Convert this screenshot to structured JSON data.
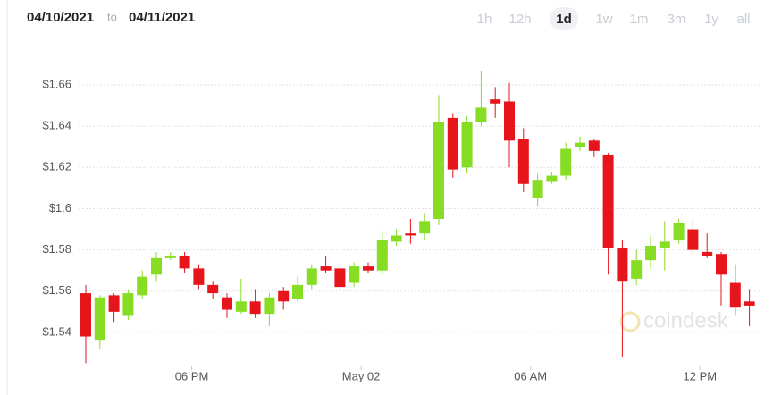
{
  "header": {
    "date_from": "04/10/2021",
    "to": "to",
    "date_to": "04/11/2021",
    "ranges": [
      "1h",
      "12h",
      "1d",
      "1w",
      "1m",
      "3m",
      "1y",
      "all"
    ],
    "selected_range": 2
  },
  "chart_data": {
    "type": "candlestick",
    "watermark": "coindesk",
    "categories": [
      null,
      null,
      null,
      null,
      null,
      null,
      null,
      null,
      null,
      null,
      null,
      null,
      null,
      null,
      null,
      null,
      null,
      null,
      null,
      null,
      null,
      null,
      null,
      null,
      null,
      null,
      null,
      null,
      null,
      null,
      null,
      null,
      null,
      null,
      null,
      null,
      null,
      null,
      null,
      null,
      null,
      null,
      null,
      null,
      null,
      null,
      null,
      null
    ],
    "open": [
      1.559,
      1.536,
      1.558,
      1.548,
      1.558,
      1.568,
      1.576,
      1.577,
      1.571,
      1.563,
      1.557,
      1.55,
      1.555,
      1.549,
      1.56,
      1.556,
      1.563,
      1.572,
      1.571,
      1.564,
      1.572,
      1.57,
      1.584,
      1.588,
      1.588,
      1.595,
      1.644,
      1.62,
      1.642,
      1.653,
      1.652,
      1.634,
      1.605,
      1.613,
      1.616,
      1.63,
      1.633,
      1.626,
      1.581,
      1.566,
      1.575,
      1.581,
      1.585,
      1.59,
      1.579,
      1.578,
      1.564,
      1.555
    ],
    "high": [
      1.563,
      1.558,
      1.559,
      1.561,
      1.57,
      1.579,
      1.579,
      1.579,
      1.573,
      1.565,
      1.559,
      1.566,
      1.561,
      1.559,
      1.562,
      1.567,
      1.573,
      1.577,
      1.573,
      1.574,
      1.574,
      1.589,
      1.59,
      1.595,
      1.598,
      1.655,
      1.646,
      1.645,
      1.667,
      1.659,
      1.661,
      1.639,
      1.617,
      1.618,
      1.632,
      1.635,
      1.634,
      1.627,
      1.585,
      1.58,
      1.587,
      1.594,
      1.595,
      1.595,
      1.588,
      1.579,
      1.573,
      1.561
    ],
    "low": [
      1.525,
      1.532,
      1.545,
      1.546,
      1.556,
      1.565,
      1.575,
      1.569,
      1.561,
      1.556,
      1.547,
      1.549,
      1.547,
      1.543,
      1.551,
      1.555,
      1.561,
      1.569,
      1.56,
      1.562,
      1.569,
      1.568,
      1.582,
      1.583,
      1.585,
      1.592,
      1.615,
      1.617,
      1.64,
      1.644,
      1.62,
      1.608,
      1.601,
      1.612,
      1.614,
      1.628,
      1.625,
      1.568,
      1.528,
      1.563,
      1.571,
      1.57,
      1.583,
      1.578,
      1.576,
      1.553,
      1.548,
      1.543
    ],
    "close": [
      1.538,
      1.557,
      1.55,
      1.559,
      1.567,
      1.576,
      1.577,
      1.571,
      1.563,
      1.559,
      1.551,
      1.555,
      1.549,
      1.557,
      1.555,
      1.563,
      1.571,
      1.57,
      1.562,
      1.572,
      1.57,
      1.585,
      1.587,
      1.587,
      1.594,
      1.642,
      1.619,
      1.642,
      1.649,
      1.651,
      1.633,
      1.612,
      1.614,
      1.616,
      1.629,
      1.632,
      1.628,
      1.581,
      1.565,
      1.575,
      1.582,
      1.584,
      1.593,
      1.58,
      1.577,
      1.568,
      1.552,
      1.553
    ],
    "up_color": "#86dd24",
    "down_color": "#e6141b",
    "ylim": [
      1.5235,
      1.673
    ],
    "yticks": [
      {
        "value": 1.54,
        "label": "$1.54"
      },
      {
        "value": 1.56,
        "label": "$1.56"
      },
      {
        "value": 1.58,
        "label": "$1.58"
      },
      {
        "value": 1.6,
        "label": "$1.6"
      },
      {
        "value": 1.62,
        "label": "$1.62"
      },
      {
        "value": 1.64,
        "label": "$1.64"
      },
      {
        "value": 1.66,
        "label": "$1.66"
      }
    ],
    "xticks": [
      {
        "value": 7.5,
        "label": "06 PM"
      },
      {
        "value": 19.5,
        "label": "May 02"
      },
      {
        "value": 31.5,
        "label": "06 AM"
      },
      {
        "value": 43.5,
        "label": "12 PM"
      }
    ],
    "grid": true
  }
}
